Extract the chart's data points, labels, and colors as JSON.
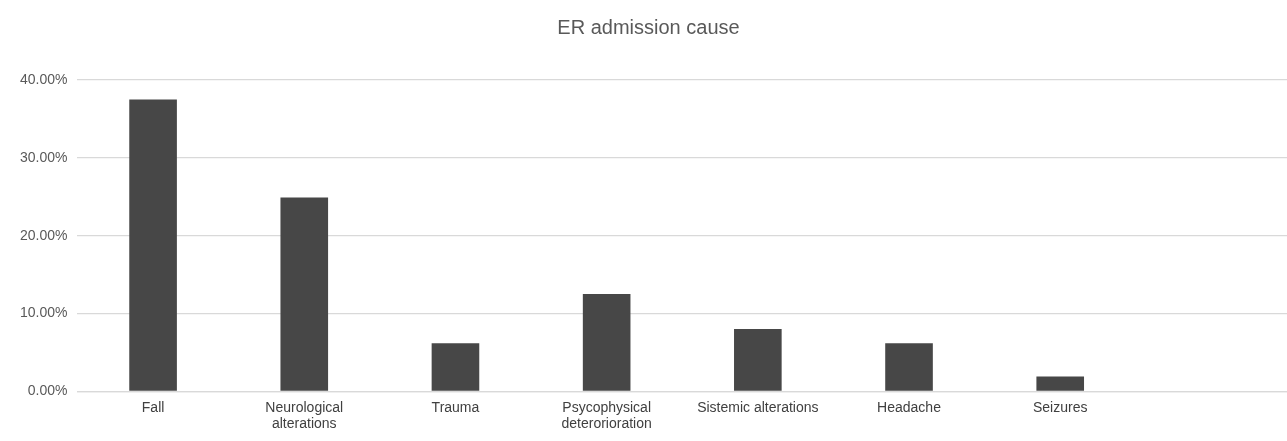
{
  "chart_data": {
    "type": "bar",
    "title": "ER admission cause",
    "categories": [
      "Fall",
      "Neurological alterations",
      "Trauma",
      "Psycophysical deterorioration",
      "Sistemic alterations",
      "Headache",
      "Seizures",
      null
    ],
    "values": [
      37.5,
      24.9,
      6.2,
      12.5,
      8,
      6.2,
      1.9,
      null
    ],
    "color": "#474747",
    "ylim": [
      0,
      40
    ],
    "yticks": [
      {
        "value": 0,
        "label": "0.00%"
      },
      {
        "value": 10,
        "label": "10.00%"
      },
      {
        "value": 20,
        "label": "20.00%"
      },
      {
        "value": 30,
        "label": "30.00%"
      },
      {
        "value": 40,
        "label": "40.00%"
      }
    ],
    "grid": "y",
    "legend": false
  }
}
